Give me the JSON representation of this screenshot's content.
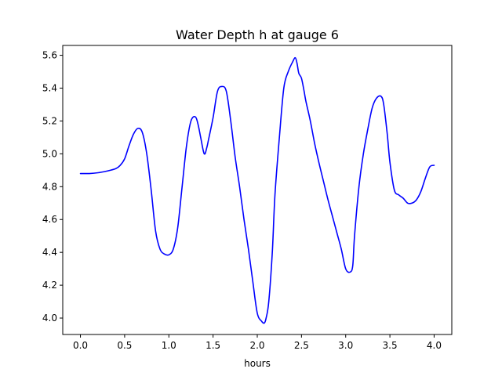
{
  "chart_data": {
    "type": "line",
    "title": "Water Depth h at gauge 6",
    "xlabel": "hours",
    "ylabel": "",
    "xlim": [
      -0.2,
      4.2
    ],
    "ylim": [
      3.9,
      5.66
    ],
    "xticks": [
      0.0,
      0.5,
      1.0,
      1.5,
      2.0,
      2.5,
      3.0,
      3.5,
      4.0
    ],
    "xtick_labels": [
      "0.0",
      "0.5",
      "1.0",
      "1.5",
      "2.0",
      "2.5",
      "3.0",
      "3.5",
      "4.0"
    ],
    "yticks": [
      4.0,
      4.2,
      4.4,
      4.6,
      4.8,
      5.0,
      5.2,
      5.4,
      5.6
    ],
    "ytick_labels": [
      "4.0",
      "4.2",
      "4.4",
      "4.6",
      "4.8",
      "5.0",
      "5.2",
      "5.4",
      "5.6"
    ],
    "grid": false,
    "series": [
      {
        "color": "#0000ff",
        "x": [
          0.0,
          0.1,
          0.2,
          0.3,
          0.4,
          0.45,
          0.5,
          0.55,
          0.6,
          0.65,
          0.7,
          0.75,
          0.8,
          0.85,
          0.9,
          0.95,
          1.0,
          1.05,
          1.1,
          1.15,
          1.2,
          1.25,
          1.3,
          1.33,
          1.36,
          1.4,
          1.43,
          1.45,
          1.5,
          1.55,
          1.6,
          1.65,
          1.7,
          1.75,
          1.8,
          1.85,
          1.9,
          1.95,
          2.0,
          2.05,
          2.08,
          2.1,
          2.13,
          2.17,
          2.2,
          2.25,
          2.3,
          2.35,
          2.4,
          2.43,
          2.45,
          2.47,
          2.5,
          2.53,
          2.55,
          2.6,
          2.65,
          2.7,
          2.75,
          2.8,
          2.85,
          2.9,
          2.95,
          3.0,
          3.05,
          3.08,
          3.1,
          3.15,
          3.2,
          3.25,
          3.3,
          3.35,
          3.4,
          3.43,
          3.47,
          3.5,
          3.55,
          3.6,
          3.65,
          3.7,
          3.75,
          3.8,
          3.85,
          3.9,
          3.95,
          4.0
        ],
        "y": [
          4.88,
          4.88,
          4.885,
          4.895,
          4.91,
          4.93,
          4.97,
          5.05,
          5.12,
          5.155,
          5.13,
          5.0,
          4.78,
          4.53,
          4.42,
          4.39,
          4.385,
          4.42,
          4.55,
          4.8,
          5.05,
          5.2,
          5.225,
          5.18,
          5.1,
          5.0,
          5.04,
          5.09,
          5.22,
          5.38,
          5.41,
          5.38,
          5.2,
          4.98,
          4.8,
          4.6,
          4.42,
          4.22,
          4.03,
          3.98,
          3.97,
          4.0,
          4.1,
          4.4,
          4.75,
          5.1,
          5.4,
          5.5,
          5.56,
          5.585,
          5.55,
          5.49,
          5.46,
          5.38,
          5.32,
          5.2,
          5.06,
          4.94,
          4.83,
          4.72,
          4.62,
          4.52,
          4.42,
          4.3,
          4.28,
          4.32,
          4.5,
          4.8,
          5.0,
          5.15,
          5.28,
          5.34,
          5.35,
          5.3,
          5.12,
          4.95,
          4.78,
          4.75,
          4.73,
          4.7,
          4.7,
          4.72,
          4.77,
          4.85,
          4.92,
          4.93
        ]
      }
    ]
  }
}
